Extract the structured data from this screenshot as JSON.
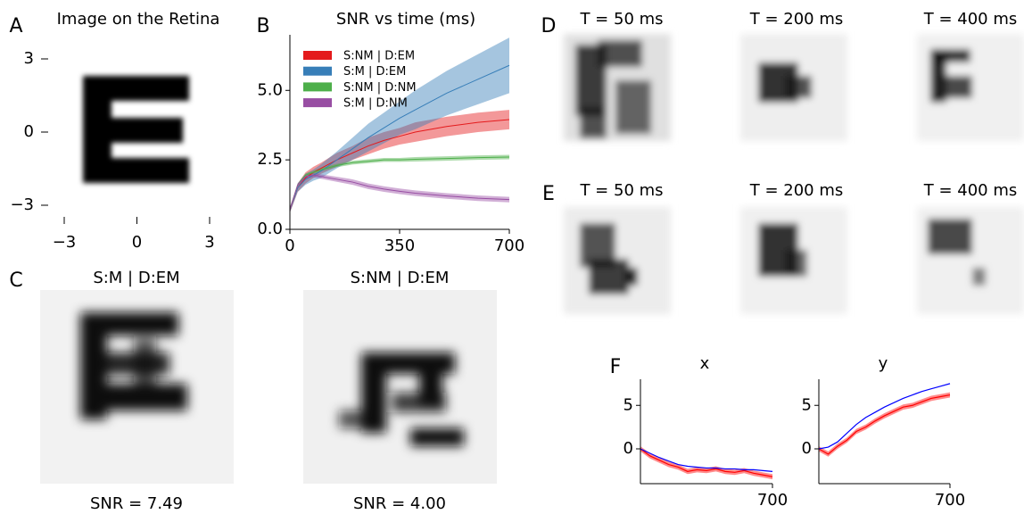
{
  "panel_labels": [
    "A",
    "B",
    "C",
    "D",
    "E",
    "F"
  ],
  "panel_a": {
    "title": "Image on the Retina",
    "xlim": [
      -3,
      3
    ],
    "ylim": [
      -3,
      3
    ],
    "xticks": [
      {
        "value": -3,
        "label": "−3"
      },
      0,
      3
    ],
    "yticks": [
      3,
      0,
      {
        "value": -3,
        "label": "−3"
      }
    ]
  },
  "chart_data": [
    {
      "type": "line",
      "title": "SNR vs time (ms)",
      "legend": "upper left",
      "x": [
        0,
        25,
        50,
        75,
        100,
        150,
        200,
        250,
        300,
        350,
        400,
        500,
        600,
        700
      ],
      "xlim": [
        0,
        700
      ],
      "xticks": [
        0,
        350,
        700
      ],
      "ylim": [
        0,
        7
      ],
      "yticks": [
        {
          "value": 0,
          "label": "0.0"
        },
        2.5,
        {
          "value": 5,
          "label": "5.0"
        }
      ],
      "series": [
        {
          "name": "S:NM | D:EM",
          "color": "#e41a1c",
          "values": [
            0.7,
            1.5,
            1.85,
            2.05,
            2.2,
            2.5,
            2.75,
            3.0,
            3.2,
            3.35,
            3.5,
            3.7,
            3.85,
            3.95
          ],
          "error": [
            0.1,
            0.15,
            0.2,
            0.2,
            0.2,
            0.25,
            0.25,
            0.3,
            0.3,
            0.3,
            0.35,
            0.35,
            0.35,
            0.35
          ]
        },
        {
          "name": "S:M | D:EM",
          "color": "#377eb8",
          "values": [
            0.7,
            1.5,
            1.8,
            1.95,
            2.1,
            2.5,
            2.9,
            3.3,
            3.65,
            4.0,
            4.3,
            4.9,
            5.4,
            5.9
          ],
          "error": [
            0.1,
            0.15,
            0.2,
            0.2,
            0.25,
            0.3,
            0.4,
            0.5,
            0.55,
            0.6,
            0.7,
            0.8,
            0.9,
            1.0
          ]
        },
        {
          "name": "S:NM | D:NM",
          "color": "#4daf4a",
          "values": [
            0.7,
            1.6,
            1.95,
            2.05,
            2.15,
            2.3,
            2.4,
            2.45,
            2.5,
            2.5,
            2.52,
            2.55,
            2.58,
            2.6
          ],
          "error": [
            0.05,
            0.05,
            0.06,
            0.06,
            0.06,
            0.06,
            0.07,
            0.07,
            0.07,
            0.07,
            0.08,
            0.08,
            0.08,
            0.08
          ]
        },
        {
          "name": "S:M | D:NM",
          "color": "#984ea3",
          "values": [
            0.7,
            1.6,
            1.9,
            1.95,
            1.9,
            1.8,
            1.7,
            1.55,
            1.45,
            1.37,
            1.3,
            1.2,
            1.12,
            1.07
          ],
          "error": [
            0.05,
            0.06,
            0.07,
            0.08,
            0.08,
            0.09,
            0.1,
            0.1,
            0.1,
            0.1,
            0.1,
            0.1,
            0.1,
            0.1
          ]
        }
      ]
    },
    {
      "type": "line",
      "title": "x",
      "x": [
        0,
        50,
        100,
        150,
        200,
        250,
        300,
        350,
        400,
        450,
        500,
        550,
        600,
        650,
        700
      ],
      "xlim": [
        0,
        700
      ],
      "xticks": [
        700
      ],
      "ylim": [
        -4,
        8
      ],
      "yticks": [
        0,
        5
      ],
      "series": [
        {
          "color": "#ff0000",
          "values": [
            0,
            -0.8,
            -1.3,
            -1.8,
            -2.1,
            -2.6,
            -2.4,
            -2.5,
            -2.3,
            -2.6,
            -2.7,
            -2.5,
            -2.8,
            -3.0,
            -3.2
          ],
          "error": [
            0.3,
            0.3,
            0.3,
            0.3,
            0.3,
            0.3,
            0.3,
            0.3,
            0.3,
            0.3,
            0.3,
            0.3,
            0.3,
            0.3,
            0.3
          ]
        },
        {
          "color": "#0000ff",
          "values": [
            0,
            -0.5,
            -1,
            -1.4,
            -1.8,
            -2,
            -2.1,
            -2.2,
            -2.2,
            -2.3,
            -2.3,
            -2.4,
            -2.4,
            -2.5,
            -2.6
          ]
        }
      ]
    },
    {
      "type": "line",
      "title": "y",
      "x": [
        0,
        50,
        100,
        150,
        200,
        250,
        300,
        350,
        400,
        450,
        500,
        550,
        600,
        650,
        700
      ],
      "xlim": [
        0,
        700
      ],
      "xticks": [
        700
      ],
      "ylim": [
        -4,
        8
      ],
      "yticks": [
        0,
        5
      ],
      "series": [
        {
          "color": "#ff0000",
          "values": [
            0,
            -0.6,
            0.3,
            1,
            2,
            2.5,
            3.2,
            3.8,
            4.3,
            4.8,
            5.0,
            5.4,
            5.8,
            6.0,
            6.2
          ],
          "error": [
            0.3,
            0.3,
            0.3,
            0.3,
            0.3,
            0.3,
            0.3,
            0.3,
            0.3,
            0.3,
            0.3,
            0.3,
            0.3,
            0.3,
            0.3
          ]
        },
        {
          "color": "#0000ff",
          "values": [
            0,
            0.2,
            0.8,
            1.8,
            2.8,
            3.6,
            4.2,
            4.8,
            5.3,
            5.8,
            6.2,
            6.6,
            6.9,
            7.2,
            7.5
          ]
        }
      ]
    }
  ],
  "panel_c": {
    "images": [
      {
        "title": "S:M | D:EM",
        "caption": "SNR = 7.49"
      },
      {
        "title": "S:NM | D:EM",
        "caption": "SNR = 4.00"
      }
    ]
  },
  "panel_d": {
    "titles": [
      "T = 50 ms",
      "T = 200 ms",
      "T = 400 ms"
    ]
  },
  "panel_e": {
    "titles": [
      "T = 50 ms",
      "T = 200 ms",
      "T = 400 ms"
    ]
  }
}
